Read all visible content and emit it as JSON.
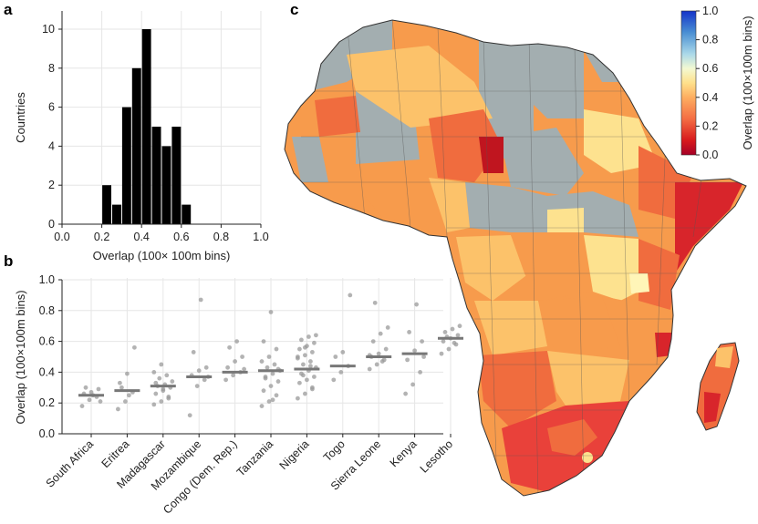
{
  "panel_labels": [
    "a",
    "b",
    "c"
  ],
  "colorbar": {
    "label": "Overlap (100×100m bins)",
    "ticks": [
      "1.0",
      "0.8",
      "0.6",
      "0.4",
      "0.2",
      "0.0"
    ],
    "colors": [
      "#1433c9",
      "#3f7ad6",
      "#9fd3e6",
      "#eef7d8",
      "#fee690",
      "#fdb35e",
      "#f4653a",
      "#cc1a24",
      "#a50026"
    ]
  },
  "map": {
    "region": "Africa",
    "no_data_color": "#a3aeb0",
    "colors": {
      "low": "#d8252b",
      "midlow": "#f06c3e",
      "mid": "#f79b4c",
      "midhigh": "#fcc26a",
      "high": "#fde28f",
      "vhigh": "#fff5b8"
    }
  },
  "chart_data": [
    {
      "type": "bar",
      "panel": "a",
      "title": "",
      "xlabel": "Overlap (100× 100m bins)",
      "ylabel": "Countries",
      "bin_edges": [
        0.2,
        0.25,
        0.3,
        0.35,
        0.4,
        0.45,
        0.5,
        0.55,
        0.6,
        0.65
      ],
      "values": [
        2,
        1,
        6,
        8,
        10,
        5,
        4,
        5,
        1
      ],
      "xlim": [
        0.0,
        1.0
      ],
      "ylim": [
        0,
        10
      ],
      "xticks": [
        "0.0",
        "0.2",
        "0.4",
        "0.6",
        "0.8",
        "1.0"
      ],
      "yticks": [
        "0",
        "2",
        "4",
        "6",
        "8",
        "10"
      ]
    },
    {
      "type": "scatter",
      "panel": "b",
      "title": "",
      "xlabel": "",
      "ylabel": "Overlap (100×100m bins)",
      "ylim": [
        0.0,
        1.0
      ],
      "yticks": [
        "0.0",
        "0.2",
        "0.4",
        "0.6",
        "0.8",
        "1.0"
      ],
      "categories": [
        "South Africa",
        "Eritrea",
        "Madagascar",
        "Mozambique",
        "Congo (Dem. Rep.)",
        "Tanzania",
        "Nigeria",
        "Togo",
        "Sierra Leone",
        "Kenya",
        "Lesotho"
      ],
      "medians": [
        0.25,
        0.28,
        0.31,
        0.37,
        0.4,
        0.41,
        0.42,
        0.44,
        0.5,
        0.52,
        0.62
      ],
      "points": [
        [
          0.18,
          0.22,
          0.24,
          0.26,
          0.27,
          0.29,
          0.3,
          0.25,
          0.21
        ],
        [
          0.16,
          0.21,
          0.27,
          0.33,
          0.39,
          0.56,
          0.3,
          0.25
        ],
        [
          0.19,
          0.21,
          0.23,
          0.26,
          0.28,
          0.3,
          0.31,
          0.32,
          0.34,
          0.36,
          0.38,
          0.4,
          0.45,
          0.24,
          0.33,
          0.29
        ],
        [
          0.12,
          0.31,
          0.35,
          0.38,
          0.41,
          0.43,
          0.53,
          0.87,
          0.37
        ],
        [
          0.35,
          0.38,
          0.4,
          0.43,
          0.47,
          0.5,
          0.56,
          0.6,
          0.42
        ],
        [
          0.18,
          0.21,
          0.25,
          0.28,
          0.31,
          0.34,
          0.37,
          0.39,
          0.41,
          0.43,
          0.45,
          0.47,
          0.5,
          0.55,
          0.6,
          0.79,
          0.42,
          0.36,
          0.22
        ],
        [
          0.23,
          0.26,
          0.3,
          0.33,
          0.35,
          0.37,
          0.39,
          0.41,
          0.43,
          0.45,
          0.47,
          0.49,
          0.51,
          0.53,
          0.55,
          0.57,
          0.59,
          0.61,
          0.63,
          0.64,
          0.38,
          0.44,
          0.5,
          0.56,
          0.29
        ],
        [
          0.35,
          0.4,
          0.44,
          0.5,
          0.53,
          0.9
        ],
        [
          0.42,
          0.45,
          0.48,
          0.5,
          0.52,
          0.55,
          0.6,
          0.65,
          0.69,
          0.85,
          0.47,
          0.51
        ],
        [
          0.26,
          0.32,
          0.4,
          0.48,
          0.54,
          0.6,
          0.66,
          0.84,
          0.5
        ],
        [
          0.52,
          0.55,
          0.58,
          0.6,
          0.62,
          0.64,
          0.66,
          0.68,
          0.7,
          0.63,
          0.59
        ]
      ]
    }
  ]
}
